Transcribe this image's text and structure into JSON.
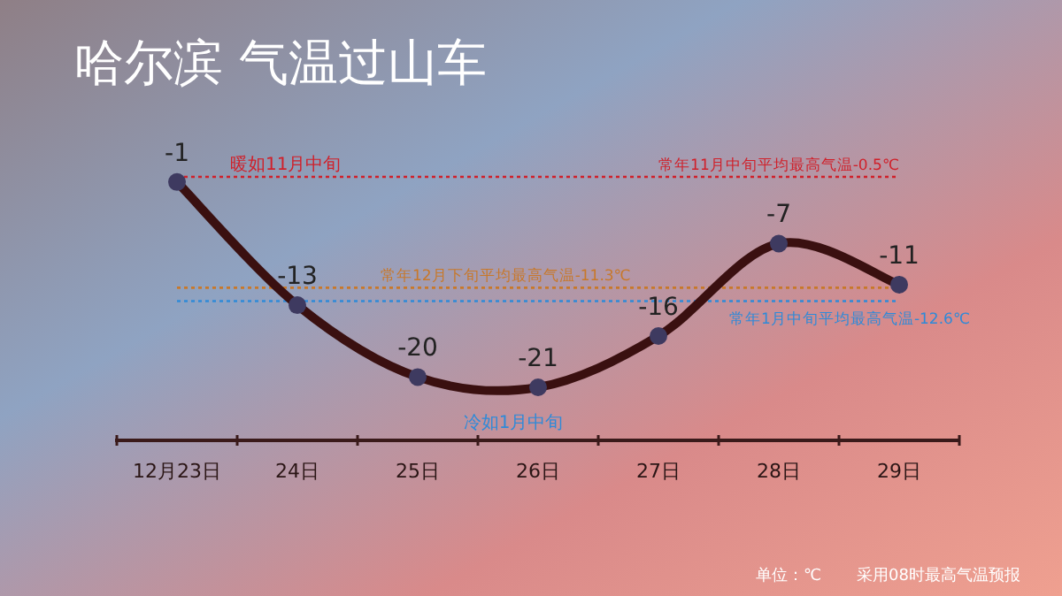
{
  "chart_data": {
    "type": "line",
    "title": "哈尔滨  气温过山车",
    "categories": [
      "12月23日",
      "24日",
      "25日",
      "26日",
      "27日",
      "28日",
      "29日"
    ],
    "series": [
      {
        "color": "#3a1010",
        "values": [
          -1,
          -13,
          -20,
          -21,
          -16,
          -7,
          -11
        ]
      }
    ],
    "data_labels": true,
    "marker": "circle",
    "line_style": "solid",
    "ref_lines": [
      {
        "axis": "y",
        "value": -0.5,
        "label": "常年11月中旬平均最高气温-0.5℃",
        "color": "#d0202a",
        "line_style": "dotted"
      },
      {
        "axis": "y",
        "value": -11.3,
        "label": "常年12月下旬平均最高气温-11.3℃",
        "color": "#c8782a",
        "line_style": "dotted"
      },
      {
        "axis": "y",
        "value": -12.6,
        "label": "常年1月中旬平均最高气温-12.6℃",
        "color": "#2f8ad8",
        "line_style": "dotted"
      }
    ],
    "annotations": [
      "暖如11月中旬",
      "冷如1月中旬",
      "单位：℃",
      "采用08时最高气温预报"
    ]
  }
}
